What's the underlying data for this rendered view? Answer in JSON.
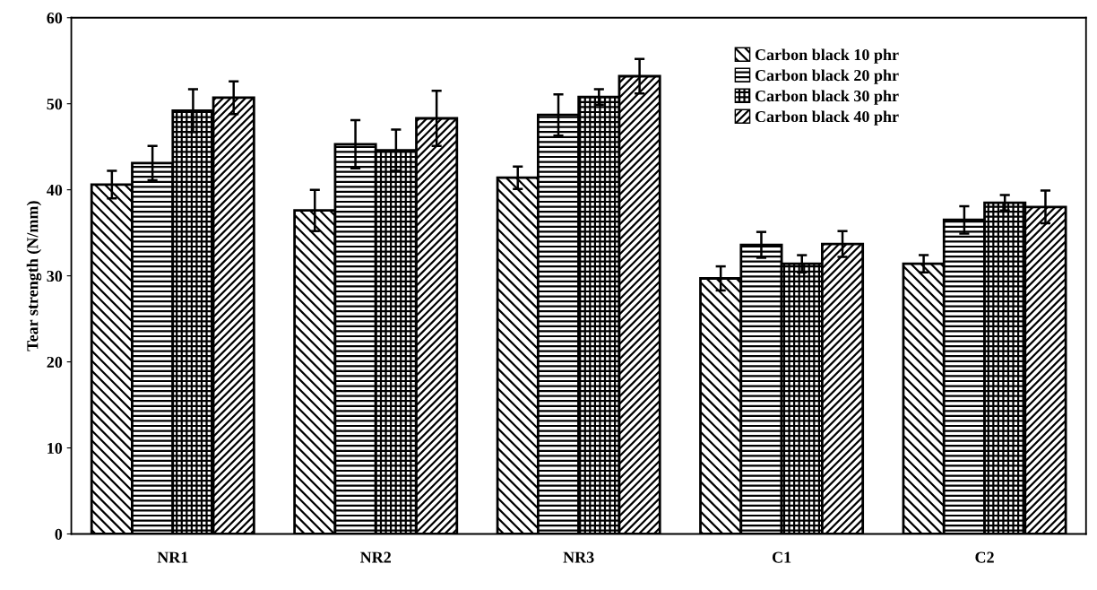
{
  "chart_data": {
    "type": "bar",
    "ylabel": "Tear strength (N/mm)",
    "categories": [
      "NR1",
      "NR2",
      "NR3",
      "C1",
      "C2"
    ],
    "series": [
      {
        "name": "Carbon black 10 phr",
        "color": "#000000",
        "values": [
          40.6,
          37.6,
          41.4,
          29.7,
          31.4
        ],
        "errors": [
          1.6,
          2.4,
          1.3,
          1.4,
          1.0
        ]
      },
      {
        "name": "Carbon black 20 phr",
        "color": "#000000",
        "values": [
          43.1,
          45.3,
          48.7,
          33.6,
          36.5
        ],
        "errors": [
          2.0,
          2.8,
          2.4,
          1.5,
          1.6
        ]
      },
      {
        "name": "Carbon black 30 phr",
        "color": "#000000",
        "values": [
          49.2,
          44.6,
          50.8,
          31.4,
          38.5
        ],
        "errors": [
          2.5,
          2.4,
          0.9,
          1.0,
          0.9
        ]
      },
      {
        "name": "Carbon black 40 phr",
        "color": "#000000",
        "values": [
          50.7,
          48.3,
          53.2,
          33.7,
          38.0
        ],
        "errors": [
          1.9,
          3.2,
          2.0,
          1.5,
          1.9
        ]
      }
    ],
    "ylim": [
      0,
      60
    ],
    "yticks": [
      0,
      10,
      20,
      30,
      40,
      50,
      60
    ],
    "grid": false,
    "legend": "top right"
  }
}
